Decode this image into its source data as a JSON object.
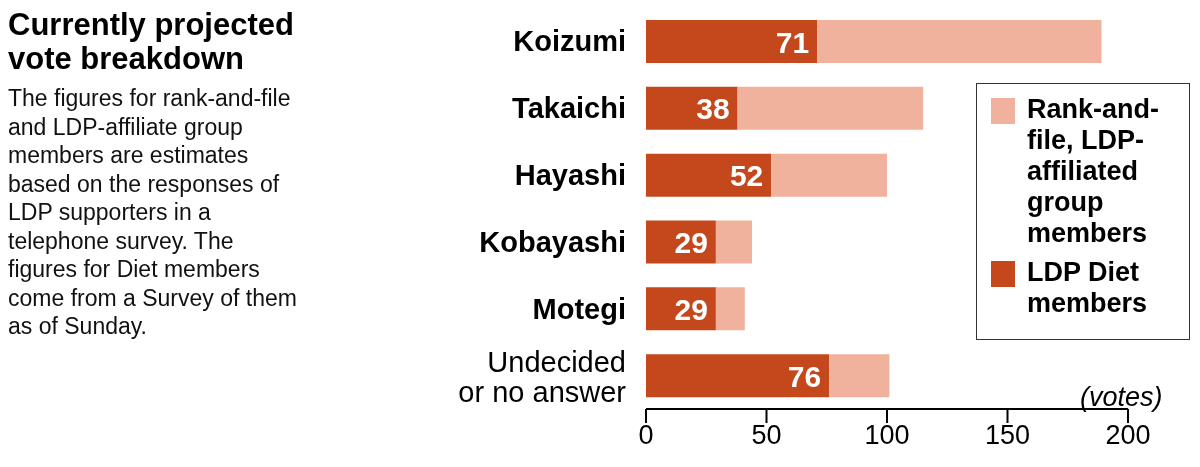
{
  "chart_data": {
    "type": "bar",
    "orientation": "horizontal",
    "stacked": true,
    "title": "Currently projected vote breakdown",
    "subtitle": "The figures for rank-and-file and LDP-affiliate group members are estimates based on the responses of LDP supporters in a telephone survey. The figures for Diet members come from a Survey of them as of Sunday.",
    "xlabel": "(votes)",
    "categories": [
      "Koizumi",
      "Takaichi",
      "Hayashi",
      "Kobayashi",
      "Motegi",
      "Undecided or no answer"
    ],
    "series": [
      {
        "name": "LDP Diet members",
        "color": "#c4481b",
        "values": [
          71,
          38,
          52,
          29,
          29,
          76
        ],
        "value_labels": [
          "71",
          "38",
          "52",
          "29",
          "29",
          "76"
        ]
      },
      {
        "name": "Rank-and-file, LDP-affiliated group members",
        "color": "#f0b29c",
        "values": [
          118,
          77,
          48,
          15,
          12,
          25
        ]
      }
    ],
    "xlim": [
      0,
      200
    ],
    "xticks": [
      0,
      50,
      100,
      150,
      200
    ],
    "legend": "right"
  }
}
